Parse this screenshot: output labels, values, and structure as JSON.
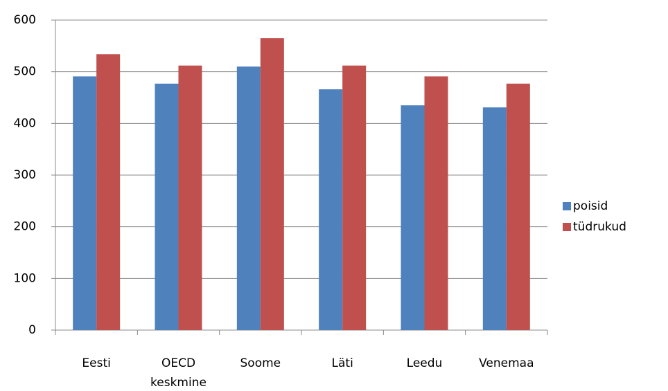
{
  "chart_data": {
    "type": "bar",
    "categories": [
      "Eesti",
      "OECD keskmine",
      "Soome",
      "Läti",
      "Leedu",
      "Venemaa"
    ],
    "series": [
      {
        "name": "poisid",
        "color": "#4f81bd",
        "values": [
          491,
          477,
          510,
          466,
          435,
          431
        ]
      },
      {
        "name": "tüdrukud",
        "color": "#c0504d",
        "values": [
          534,
          512,
          565,
          512,
          491,
          477
        ]
      }
    ],
    "ylim": [
      0,
      600
    ],
    "yticks": [
      0,
      100,
      200,
      300,
      400,
      500,
      600
    ],
    "grid": true,
    "legend": "right"
  }
}
